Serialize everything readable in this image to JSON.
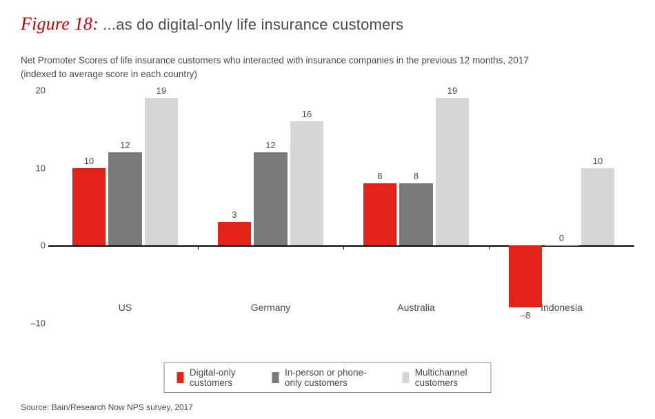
{
  "figure_label": "Figure 18:",
  "figure_title": "...as do digital-only life insurance customers",
  "subtitle_line1": "Net Promoter Scores of life insurance customers who interacted with insurance companies in the previous 12 months, 2017",
  "subtitle_line2": "(indexed to average score in each country)",
  "source": "Source: Bain/Research Now NPS survey, 2017",
  "chart": {
    "type": "bar",
    "background_color": "#ffffff",
    "zero_line_color": "#000000",
    "ylim": [
      -12,
      20
    ],
    "yticks": [
      -10,
      0,
      10,
      20
    ],
    "ytick_labels": [
      "–10",
      "0",
      "10",
      "20"
    ],
    "tick_fontsize": 13,
    "label_fontsize": 13,
    "cat_label_fontsize": 14,
    "bar_rel_width": 0.23,
    "group_gap": 0.09,
    "categories": [
      "US",
      "Germany",
      "Australia",
      "Indonesia"
    ],
    "series": [
      {
        "name": "Digital-only customers",
        "color": "#e2231a"
      },
      {
        "name": "In-person or phone-only customers",
        "color": "#7a7a7a"
      },
      {
        "name": "Multichannel customers",
        "color": "#d6d6d6"
      }
    ],
    "values": [
      [
        10,
        12,
        19
      ],
      [
        3,
        12,
        16
      ],
      [
        8,
        8,
        19
      ],
      [
        -8,
        0,
        10
      ]
    ],
    "value_labels": [
      [
        "10",
        "12",
        "19"
      ],
      [
        "3",
        "12",
        "16"
      ],
      [
        "8",
        "8",
        "19"
      ],
      [
        "–8",
        "0",
        "10"
      ]
    ]
  }
}
